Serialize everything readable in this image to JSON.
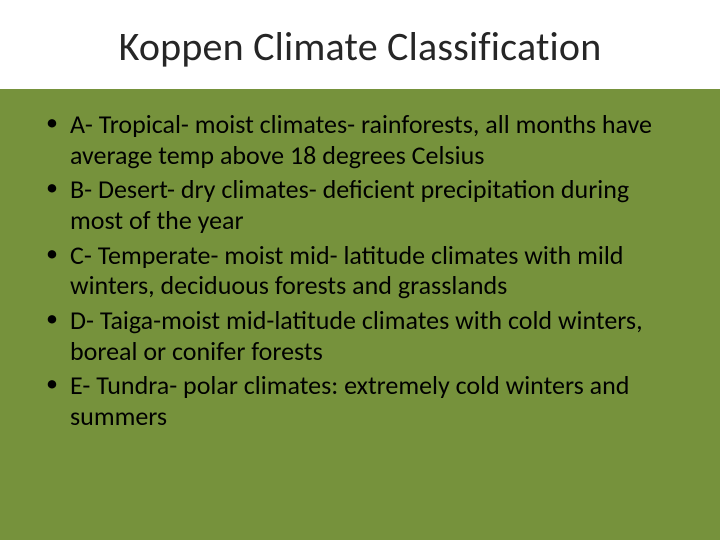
{
  "slide": {
    "background_color": "#76923c",
    "title_bg_color": "#ffffff",
    "text_color": "#000000",
    "title_color": "#262626",
    "font_family": "Calibri",
    "title_fontsize": 40,
    "bullet_fontsize": 26,
    "title": "Koppen Climate Classification",
    "bullets": [
      "A- Tropical- moist climates- rainforests, all months have average temp above 18 degrees Celsius",
      "B- Desert- dry climates- deficient precipitation during most of the year",
      "C- Temperate- moist mid- latitude climates with mild winters, deciduous forests and grasslands",
      "D- Taiga-moist mid-latitude climates with cold winters, boreal or conifer forests",
      "E- Tundra- polar climates: extremely cold winters and summers"
    ]
  }
}
